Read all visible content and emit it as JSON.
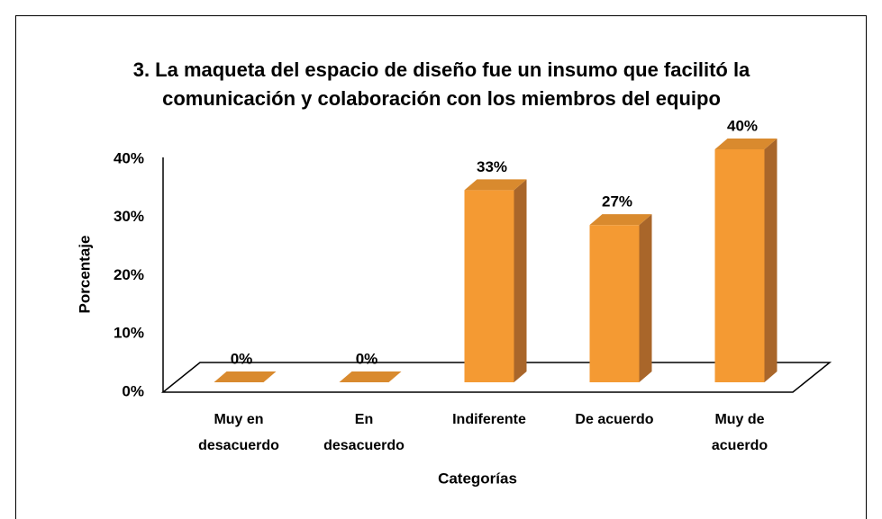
{
  "chart_data": {
    "type": "bar3d",
    "title": "3. La maqueta del espacio de diseño fue un insumo que facilitó la comunicación y colaboración con los miembros del equipo",
    "xlabel": "Categorías",
    "ylabel": "Porcentaje",
    "categories": [
      "Muy en desacuerdo",
      "En desacuerdo",
      "Indiferente",
      "De acuerdo",
      "Muy de acuerdo"
    ],
    "values": [
      0,
      0,
      33,
      27,
      40
    ],
    "value_labels": [
      "0%",
      "0%",
      "33%",
      "27%",
      "40%"
    ],
    "color": "#f49a33",
    "ylim": [
      0,
      40
    ],
    "yticks": [
      {
        "value": 0,
        "label": "0%"
      },
      {
        "value": 10,
        "label": "10%"
      },
      {
        "value": 20,
        "label": "20%"
      },
      {
        "value": 30,
        "label": "30%"
      },
      {
        "value": 40,
        "label": "40%"
      }
    ],
    "grid": false
  }
}
